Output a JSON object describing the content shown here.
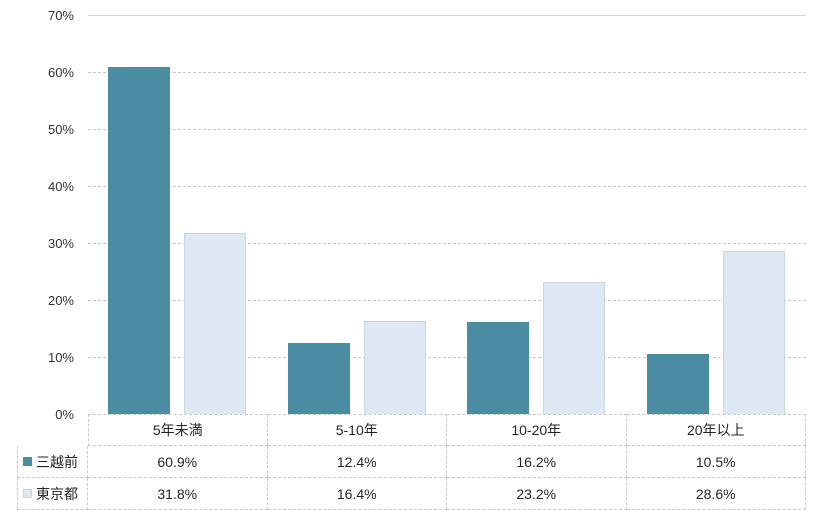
{
  "colors": {
    "series1": "#4A8CA2",
    "series2": "#DDE8F4",
    "series2_border": "#C9D6E8",
    "gridline": "#C9C9C9",
    "gridline_top": "#D6D6D6",
    "table_border": "#C8C8C8",
    "text": "#262626",
    "background": "#FFFFFF"
  },
  "chart_data": {
    "type": "bar",
    "title": "",
    "xlabel": "",
    "ylabel": "",
    "categories": [
      "5年未満",
      "5-10年",
      "10-20年",
      "20年以上"
    ],
    "series": [
      {
        "name": "三越前",
        "color": "#4A8CA2",
        "bordered": false,
        "values": [
          60.9,
          12.4,
          16.2,
          10.5
        ]
      },
      {
        "name": "東京都",
        "color": "#DDE8F4",
        "bordered": true,
        "values": [
          31.8,
          16.4,
          23.2,
          28.6
        ]
      }
    ],
    "value_suffix": "%",
    "ylim": [
      0,
      70
    ],
    "yticks": [
      0,
      10,
      20,
      30,
      40,
      50,
      60,
      70
    ],
    "ytick_labels": [
      "0%",
      "10%",
      "20%",
      "30%",
      "40%",
      "50%",
      "60%",
      "70%"
    ],
    "grid": true,
    "legend_position": "data-table-left",
    "data_table_values": {
      "三越前": [
        "60.9%",
        "12.4%",
        "16.2%",
        "10.5%"
      ],
      "東京都": [
        "31.8%",
        "16.4%",
        "23.2%",
        "28.6%"
      ]
    }
  }
}
